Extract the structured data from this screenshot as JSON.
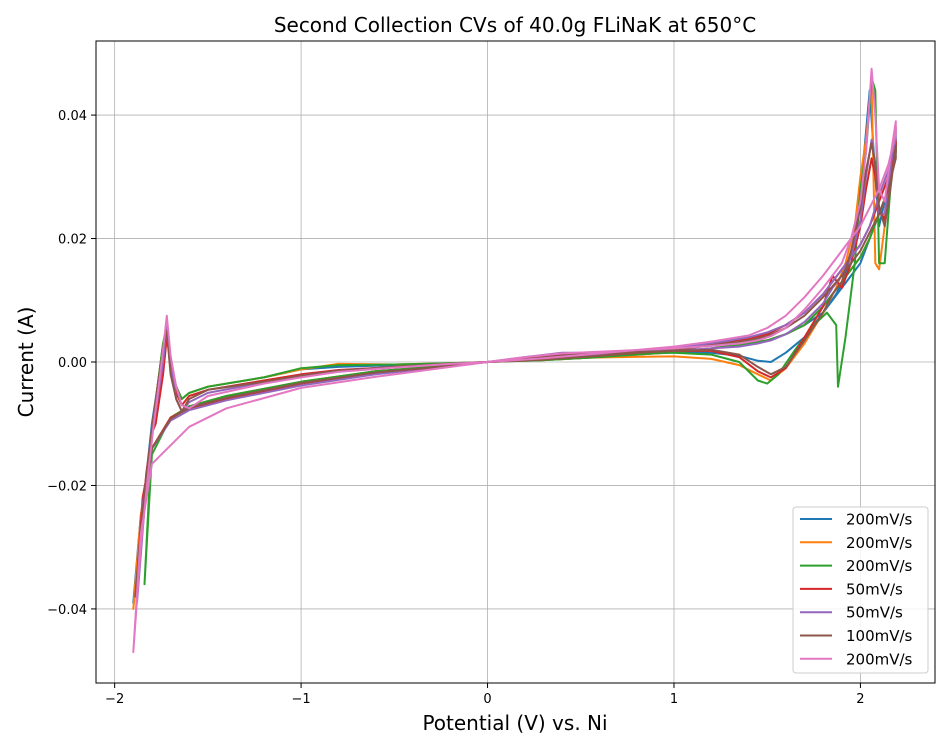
{
  "chart_data": {
    "type": "line",
    "title": "Second Collection CVs of 40.0g FLiNaK at 650°C",
    "xlabel": "Potential (V) vs. Ni",
    "ylabel": "Current (A)",
    "xlim": [
      -2.1,
      2.4
    ],
    "ylim": [
      -0.052,
      0.052
    ],
    "xticks": [
      -2,
      -1,
      0,
      1,
      2
    ],
    "xtick_labels": [
      "−2",
      "−1",
      "0",
      "1",
      "2"
    ],
    "yticks": [
      -0.04,
      -0.02,
      0.0,
      0.02,
      0.04
    ],
    "ytick_labels": [
      "−0.04",
      "−0.02",
      "0.00",
      "0.02",
      "0.04"
    ],
    "grid": true,
    "legend_position": "lower-right",
    "colors": [
      "#1f77b4",
      "#ff7f0e",
      "#2ca02c",
      "#d62728",
      "#9467bd",
      "#8c564b",
      "#e377c2"
    ],
    "series": [
      {
        "name": "200mV/s",
        "x": [
          -1.9,
          -1.85,
          -1.8,
          -1.77,
          -1.74,
          -1.72,
          -1.7,
          -1.67,
          -1.64,
          -1.6,
          -1.5,
          -1.2,
          -1.0,
          -0.8,
          -0.5,
          -0.2,
          0.0,
          0.2,
          0.4,
          0.7,
          1.0,
          1.2,
          1.35,
          1.45,
          1.52,
          1.6,
          1.7,
          1.8,
          1.87,
          1.92,
          1.97,
          2.0,
          2.02,
          2.05,
          2.08,
          2.1,
          2.13,
          2.16,
          2.19,
          2.19,
          2.15,
          2.1,
          2.05,
          2.0,
          1.95,
          1.9,
          1.8,
          1.7,
          1.6,
          1.5,
          1.4,
          1.2,
          1.0,
          0.6,
          0.3,
          0.0,
          -0.3,
          -0.6,
          -1.0,
          -1.4,
          -1.6,
          -1.7,
          -1.8,
          -1.86,
          -1.9
        ],
        "y": [
          -0.039,
          -0.024,
          -0.01,
          -0.004,
          0.003,
          0.005,
          -0.001,
          -0.004,
          -0.006,
          -0.005,
          -0.004,
          -0.0025,
          -0.0012,
          -0.0008,
          -0.0005,
          -0.0002,
          0.0,
          0.0006,
          0.0012,
          0.0014,
          0.0016,
          0.0015,
          0.001,
          0.0002,
          0.0,
          0.0015,
          0.004,
          0.008,
          0.011,
          0.014,
          0.02,
          0.028,
          0.034,
          0.044,
          0.03,
          0.022,
          0.026,
          0.031,
          0.036,
          0.034,
          0.028,
          0.024,
          0.02,
          0.016,
          0.014,
          0.012,
          0.008,
          0.006,
          0.0045,
          0.0035,
          0.003,
          0.0022,
          0.0016,
          0.0008,
          0.0003,
          0.0,
          -0.0008,
          -0.0015,
          -0.0032,
          -0.0055,
          -0.0072,
          -0.009,
          -0.014,
          -0.025,
          -0.039
        ]
      },
      {
        "name": "200mV/s",
        "x": [
          -1.9,
          -1.85,
          -1.8,
          -1.77,
          -1.74,
          -1.72,
          -1.7,
          -1.67,
          -1.64,
          -1.6,
          -1.5,
          -1.2,
          -1.0,
          -0.8,
          -0.5,
          -0.2,
          0.0,
          0.2,
          0.4,
          0.7,
          1.0,
          1.2,
          1.35,
          1.45,
          1.52,
          1.6,
          1.7,
          1.8,
          1.87,
          1.92,
          1.97,
          2.0,
          2.03,
          2.06,
          2.08,
          2.1,
          2.13,
          2.16,
          2.19,
          2.19,
          2.15,
          2.1,
          2.05,
          2.0,
          1.95,
          1.9,
          1.8,
          1.7,
          1.6,
          1.5,
          1.4,
          1.2,
          1.0,
          0.6,
          0.3,
          0.0,
          -0.3,
          -0.6,
          -1.0,
          -1.4,
          -1.6,
          -1.7,
          -1.8,
          -1.86,
          -1.9
        ],
        "y": [
          -0.04,
          -0.025,
          -0.011,
          -0.004,
          0.003,
          0.005,
          -0.001,
          -0.004,
          -0.006,
          -0.005,
          -0.004,
          -0.0025,
          -0.0012,
          -0.0003,
          -0.0004,
          -0.0002,
          0.0,
          0.0003,
          0.0006,
          0.0008,
          0.0009,
          0.0005,
          -0.0005,
          -0.002,
          -0.003,
          -0.001,
          0.003,
          0.008,
          0.012,
          0.016,
          0.022,
          0.03,
          0.036,
          0.045,
          0.016,
          0.015,
          0.022,
          0.03,
          0.036,
          0.034,
          0.028,
          0.024,
          0.02,
          0.017,
          0.015,
          0.013,
          0.009,
          0.006,
          0.0045,
          0.0035,
          0.003,
          0.0022,
          0.0016,
          0.0008,
          0.0003,
          0.0,
          -0.0008,
          -0.0015,
          -0.0032,
          -0.0055,
          -0.0072,
          -0.009,
          -0.014,
          -0.025,
          -0.04
        ]
      },
      {
        "name": "200mV/s",
        "x": [
          -1.84,
          -1.8,
          -1.77,
          -1.74,
          -1.72,
          -1.7,
          -1.67,
          -1.64,
          -1.6,
          -1.5,
          -1.2,
          -1.0,
          -0.8,
          -0.5,
          -0.2,
          0.0,
          0.2,
          0.4,
          0.7,
          1.0,
          1.2,
          1.35,
          1.45,
          1.5,
          1.56,
          1.65,
          1.75,
          1.82,
          1.87,
          1.88,
          1.92,
          1.97,
          2.0,
          2.03,
          2.06,
          2.08,
          2.1,
          2.13,
          2.16,
          2.19,
          2.19,
          2.15,
          2.1,
          2.05,
          2.0,
          1.95,
          1.9,
          1.8,
          1.7,
          1.6,
          1.5,
          1.4,
          1.2,
          1.0,
          0.6,
          0.3,
          0.0,
          -0.3,
          -0.6,
          -1.0,
          -1.4,
          -1.6,
          -1.7,
          -1.8,
          -1.84
        ],
        "y": [
          -0.036,
          -0.012,
          -0.004,
          0.003,
          0.006,
          0.0,
          -0.004,
          -0.006,
          -0.005,
          -0.004,
          -0.0025,
          -0.001,
          -0.0005,
          -0.0004,
          -0.0002,
          0.0,
          0.0004,
          0.0008,
          0.0012,
          0.0015,
          0.0012,
          0.0,
          -0.003,
          -0.0035,
          -0.002,
          0.002,
          0.006,
          0.008,
          0.006,
          -0.004,
          0.004,
          0.016,
          0.028,
          0.034,
          0.046,
          0.044,
          0.016,
          0.016,
          0.028,
          0.036,
          0.034,
          0.028,
          0.024,
          0.02,
          0.017,
          0.015,
          0.013,
          0.009,
          0.006,
          0.0045,
          0.0035,
          0.003,
          0.0022,
          0.0016,
          0.0008,
          0.0003,
          0.0,
          -0.0008,
          -0.0015,
          -0.0032,
          -0.0055,
          -0.0072,
          -0.009,
          -0.015,
          -0.036
        ]
      },
      {
        "name": "50mV/s",
        "x": [
          -1.88,
          -1.83,
          -1.8,
          -1.78,
          -1.76,
          -1.74,
          -1.72,
          -1.7,
          -1.67,
          -1.64,
          -1.6,
          -1.5,
          -1.2,
          -1.0,
          -0.8,
          -0.5,
          -0.2,
          0.0,
          0.2,
          0.4,
          0.7,
          1.0,
          1.2,
          1.35,
          1.45,
          1.52,
          1.6,
          1.7,
          1.8,
          1.85,
          1.9,
          1.95,
          2.0,
          2.03,
          2.06,
          2.08,
          2.1,
          2.13,
          2.16,
          2.19,
          2.19,
          2.15,
          2.1,
          2.05,
          2.0,
          1.95,
          1.9,
          1.8,
          1.7,
          1.6,
          1.5,
          1.4,
          1.2,
          1.0,
          0.6,
          0.3,
          0.0,
          -0.3,
          -0.6,
          -1.0,
          -1.4,
          -1.6,
          -1.7,
          -1.8,
          -1.85,
          -1.88
        ],
        "y": [
          -0.035,
          -0.018,
          -0.0115,
          -0.01,
          -0.006,
          -0.002,
          0.004,
          0.0,
          -0.005,
          -0.007,
          -0.0055,
          -0.0045,
          -0.003,
          -0.002,
          -0.0013,
          -0.0008,
          -0.0003,
          0.0,
          0.0006,
          0.001,
          0.0014,
          0.0018,
          0.0018,
          0.0008,
          -0.0015,
          -0.0025,
          -0.001,
          0.004,
          0.009,
          0.014,
          0.012,
          0.016,
          0.022,
          0.028,
          0.033,
          0.03,
          0.025,
          0.023,
          0.03,
          0.036,
          0.035,
          0.03,
          0.026,
          0.022,
          0.019,
          0.017,
          0.015,
          0.011,
          0.008,
          0.006,
          0.0045,
          0.0038,
          0.0028,
          0.002,
          0.001,
          0.0004,
          0.0,
          -0.0009,
          -0.0018,
          -0.0035,
          -0.006,
          -0.0075,
          -0.009,
          -0.014,
          -0.022,
          -0.035
        ]
      },
      {
        "name": "50mV/s",
        "x": [
          -1.88,
          -1.83,
          -1.8,
          -1.78,
          -1.76,
          -1.74,
          -1.72,
          -1.7,
          -1.67,
          -1.64,
          -1.6,
          -1.5,
          -1.2,
          -1.0,
          -0.8,
          -0.5,
          -0.2,
          0.0,
          0.2,
          0.4,
          0.7,
          1.0,
          1.2,
          1.35,
          1.45,
          1.52,
          1.6,
          1.7,
          1.8,
          1.85,
          1.9,
          1.95,
          2.0,
          2.03,
          2.06,
          2.08,
          2.1,
          2.13,
          2.16,
          2.19,
          2.19,
          2.15,
          2.1,
          2.05,
          2.0,
          1.95,
          1.9,
          1.8,
          1.7,
          1.6,
          1.5,
          1.4,
          1.2,
          1.0,
          0.6,
          0.3,
          0.0,
          -0.3,
          -0.6,
          -1.0,
          -1.4,
          -1.6,
          -1.7,
          -1.8,
          -1.85,
          -1.88
        ],
        "y": [
          -0.039,
          -0.02,
          -0.012,
          -0.008,
          -0.004,
          0.0,
          0.006,
          0.0,
          -0.006,
          -0.008,
          -0.0065,
          -0.005,
          -0.0033,
          -0.0022,
          -0.0014,
          -0.0008,
          -0.0003,
          0.0,
          0.0008,
          0.0015,
          0.0015,
          0.0018,
          0.0022,
          0.0025,
          0.003,
          0.0035,
          0.0045,
          0.0065,
          0.0095,
          0.012,
          0.014,
          0.017,
          0.023,
          0.03,
          0.036,
          0.032,
          0.024,
          0.024,
          0.031,
          0.038,
          0.036,
          0.031,
          0.027,
          0.022,
          0.019,
          0.017,
          0.015,
          0.011,
          0.008,
          0.006,
          0.0048,
          0.004,
          0.003,
          0.0022,
          0.0012,
          0.0005,
          0.0,
          -0.001,
          -0.002,
          -0.0038,
          -0.0062,
          -0.0078,
          -0.0095,
          -0.014,
          -0.023,
          -0.039
        ]
      },
      {
        "name": "100mV/s",
        "x": [
          -1.89,
          -1.84,
          -1.8,
          -1.77,
          -1.74,
          -1.72,
          -1.7,
          -1.67,
          -1.64,
          -1.6,
          -1.5,
          -1.2,
          -1.0,
          -0.8,
          -0.5,
          -0.2,
          0.0,
          0.2,
          0.4,
          0.7,
          1.0,
          1.2,
          1.35,
          1.45,
          1.52,
          1.6,
          1.7,
          1.8,
          1.85,
          1.9,
          1.95,
          2.0,
          2.03,
          2.06,
          2.08,
          2.1,
          2.13,
          2.16,
          2.19,
          2.19,
          2.15,
          2.1,
          2.05,
          2.0,
          1.95,
          1.9,
          1.8,
          1.7,
          1.6,
          1.5,
          1.4,
          1.2,
          1.0,
          0.6,
          0.3,
          0.0,
          -0.3,
          -0.6,
          -1.0,
          -1.4,
          -1.6,
          -1.7,
          -1.8,
          -1.85,
          -1.89
        ],
        "y": [
          -0.038,
          -0.021,
          -0.011,
          -0.004,
          0.002,
          0.005,
          -0.002,
          -0.006,
          -0.008,
          -0.006,
          -0.0045,
          -0.0032,
          -0.0022,
          -0.0014,
          -0.0008,
          -0.0003,
          0.0,
          0.0007,
          0.0012,
          0.0015,
          0.0018,
          0.002,
          0.0012,
          -0.0008,
          -0.002,
          -0.0008,
          0.0035,
          0.008,
          0.011,
          0.013,
          0.018,
          0.025,
          0.031,
          0.0355,
          0.032,
          0.025,
          0.022,
          0.028,
          0.035,
          0.033,
          0.028,
          0.024,
          0.021,
          0.018,
          0.016,
          0.014,
          0.0105,
          0.0075,
          0.0055,
          0.0042,
          0.0035,
          0.0027,
          0.0019,
          0.001,
          0.0004,
          0.0,
          -0.0009,
          -0.0017,
          -0.0034,
          -0.0058,
          -0.0074,
          -0.0092,
          -0.014,
          -0.024,
          -0.038
        ]
      },
      {
        "name": "200mV/s",
        "x": [
          -1.9,
          -1.86,
          -1.82,
          -1.79,
          -1.76,
          -1.74,
          -1.72,
          -1.7,
          -1.67,
          -1.64,
          -1.6,
          -1.5,
          -1.2,
          -1.0,
          -0.8,
          -0.5,
          -0.2,
          0.0,
          0.2,
          0.4,
          0.7,
          1.0,
          1.2,
          1.35,
          1.45,
          1.52,
          1.6,
          1.7,
          1.8,
          1.85,
          1.9,
          1.95,
          2.0,
          2.03,
          2.06,
          2.08,
          2.1,
          2.13,
          2.16,
          2.19,
          2.19,
          2.15,
          2.1,
          2.05,
          2.0,
          1.95,
          1.9,
          1.8,
          1.7,
          1.6,
          1.5,
          1.4,
          1.2,
          1.0,
          0.6,
          0.3,
          0.0,
          -0.3,
          -0.6,
          -1.0,
          -1.4,
          -1.6,
          -1.7,
          -1.8,
          -1.86,
          -1.9
        ],
        "y": [
          -0.047,
          -0.03,
          -0.018,
          -0.01,
          -0.003,
          0.002,
          0.0075,
          0.001,
          -0.004,
          -0.007,
          -0.0075,
          -0.0055,
          -0.0035,
          -0.0025,
          -0.0016,
          -0.0009,
          -0.0003,
          0.0,
          0.0008,
          0.0014,
          0.0018,
          0.0022,
          0.0026,
          0.003,
          0.0035,
          0.0042,
          0.0055,
          0.0085,
          0.012,
          0.014,
          0.016,
          0.02,
          0.026,
          0.034,
          0.0475,
          0.04,
          0.028,
          0.026,
          0.033,
          0.039,
          0.037,
          0.032,
          0.028,
          0.025,
          0.022,
          0.02,
          0.018,
          0.014,
          0.0105,
          0.0075,
          0.0055,
          0.0043,
          0.0033,
          0.0025,
          0.0014,
          0.0006,
          0.0,
          -0.0012,
          -0.0024,
          -0.0042,
          -0.0075,
          -0.0105,
          -0.0135,
          -0.0165,
          -0.028,
          -0.047
        ]
      }
    ]
  }
}
